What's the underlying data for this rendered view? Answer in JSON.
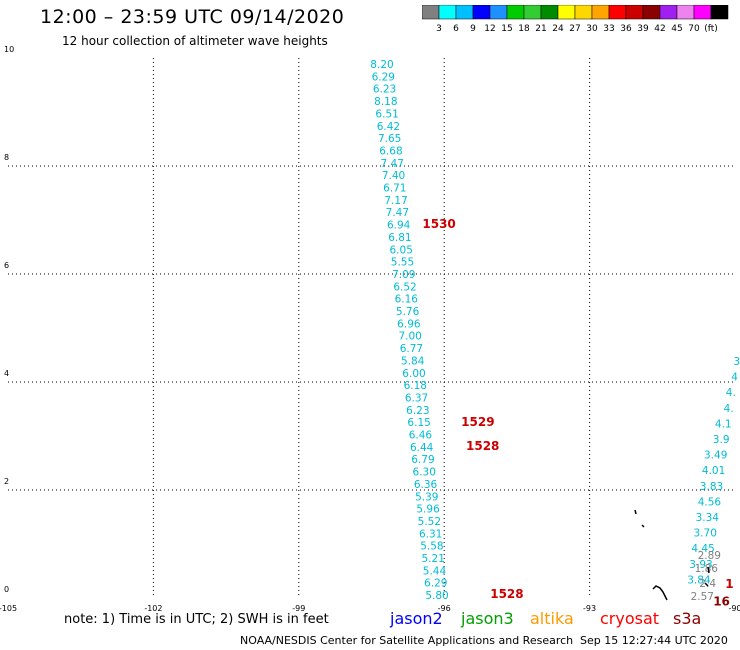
{
  "header": {
    "title": "12:00 – 23:59 UTC 09/14/2020",
    "subtitle": "12 hour collection of altimeter wave heights"
  },
  "colorbar": {
    "colors": [
      "#808080",
      "#00ffff",
      "#00bfff",
      "#0000ff",
      "#1e90ff",
      "#00cd00",
      "#32cd32",
      "#008b00",
      "#ffff00",
      "#ffd700",
      "#ffa500",
      "#ff0000",
      "#cd0000",
      "#8b0000",
      "#a020f0",
      "#ee82ee",
      "#ff00ff",
      "#000000"
    ],
    "labels": [
      "3",
      "6",
      "9",
      "12",
      "15",
      "18",
      "21",
      "24",
      "27",
      "30",
      "33",
      "36",
      "39",
      "42",
      "45",
      "70",
      "(ft)"
    ]
  },
  "axes": {
    "x_ticks": [
      "-105",
      "-102",
      "-99",
      "-96",
      "-93",
      "-90"
    ],
    "y_ticks": [
      "10",
      "8",
      "6",
      "4",
      "2",
      "0"
    ],
    "xlim": [
      -105,
      -90
    ],
    "ylim": [
      0,
      10
    ]
  },
  "track_main": {
    "color": "#00bcd4",
    "values": [
      "8.20",
      "6.29",
      "6.23",
      "8.18",
      "6.51",
      "6.42",
      "7.65",
      "6.68",
      "7.47",
      "7.40",
      "6.71",
      "7.17",
      "7.47",
      "6.94",
      "6.81",
      "6.05",
      "5.55",
      "7.09",
      "6.52",
      "6.16",
      "5.76",
      "6.96",
      "7.00",
      "6.77",
      "5.84",
      "6.00",
      "6.18",
      "6.37",
      "6.23",
      "6.15",
      "6.46",
      "6.44",
      "6.79",
      "6.30",
      "6.36",
      "5.39",
      "5.96",
      "5.52",
      "6.31",
      "5.58",
      "5.21",
      "5.44",
      "6.29",
      "5.80"
    ]
  },
  "track_right": {
    "color": "#00bcd4",
    "values": [
      "3",
      "4",
      "4.",
      "4.",
      "4.1",
      "3.9",
      "3.49",
      "4.01",
      "3.83",
      "4.56",
      "3.34",
      "3.70",
      "4.45",
      "3.93",
      "3.84"
    ]
  },
  "track_right_gray": {
    "color": "#808080",
    "values": [
      "2.89",
      "1.86",
      "2.4",
      "2.57"
    ]
  },
  "time_labels": [
    {
      "text": "1530",
      "lon": -96.45,
      "lat": 6.94
    },
    {
      "text": "1529",
      "lon": -95.65,
      "lat": 3.28
    },
    {
      "text": "1528",
      "lon": -95.55,
      "lat": 2.83
    },
    {
      "text": "1528",
      "lon": -95.05,
      "lat": 0.09
    },
    {
      "text": "1",
      "lon": -90.2,
      "lat": 0.28
    },
    {
      "text": "16",
      "lon": -90.45,
      "lat": -0.05
    }
  ],
  "footer": {
    "note": "note:  1) Time is in UTC;  2) SWH is in feet",
    "satellites": [
      {
        "name": "jason2",
        "color": "#0000ff"
      },
      {
        "name": "jason3",
        "color": "#00a000"
      },
      {
        "name": "altika",
        "color": "#ff9900"
      },
      {
        "name": "cryosat",
        "color": "#ff0000"
      },
      {
        "name": "s3a",
        "color": "#8b0000"
      }
    ],
    "credit": "NOAA/NESDIS Center for Satellite Applications and Research",
    "timestamp": "Sep 15 12:27:44 UTC 2020"
  }
}
